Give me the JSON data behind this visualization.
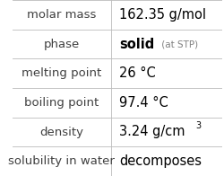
{
  "rows": [
    {
      "label": "molar mass",
      "value": "162.35 g/mol",
      "type": "normal"
    },
    {
      "label": "phase",
      "value": "solid",
      "type": "phase",
      "suffix": " (at STP)"
    },
    {
      "label": "melting point",
      "value": "26 °C",
      "type": "normal"
    },
    {
      "label": "boiling point",
      "value": "97.4 °C",
      "type": "normal"
    },
    {
      "label": "density",
      "value": "3.24 g/cm",
      "type": "super",
      "superscript": "3"
    },
    {
      "label": "solubility in water",
      "value": "decomposes",
      "type": "normal"
    }
  ],
  "col_split": 0.472,
  "bg_color": "#ffffff",
  "grid_color": "#bbbbbb",
  "label_color": "#404040",
  "value_color": "#000000",
  "suffix_color": "#808080",
  "label_fontsize": 9.5,
  "value_fontsize": 10.5,
  "suffix_fontsize": 7.5,
  "super_fontsize": 7.0
}
